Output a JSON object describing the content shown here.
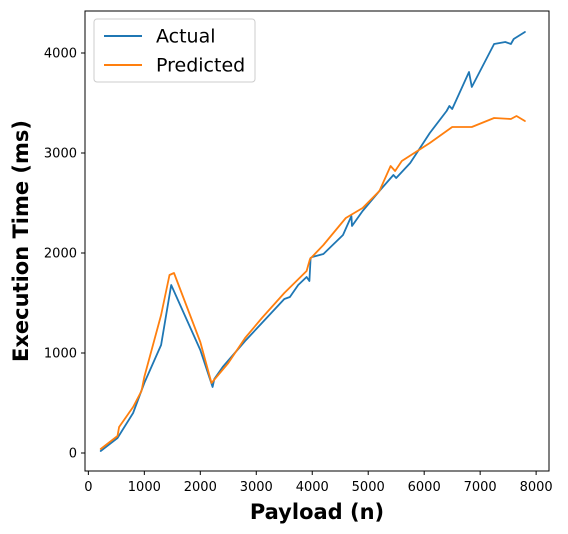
{
  "chart_data": {
    "type": "line",
    "title": "",
    "xlabel": "Payload (n)",
    "ylabel": "Execution Time (ms)",
    "xlim": [
      -60,
      8230
    ],
    "ylim": [
      -180,
      4420
    ],
    "xticks": [
      0,
      1000,
      2000,
      3000,
      4000,
      5000,
      6000,
      7000,
      8000
    ],
    "yticks": [
      0,
      1000,
      2000,
      3000,
      4000
    ],
    "grid": false,
    "legend_position": "top-left",
    "series": [
      {
        "name": "Actual",
        "color": "#1f77b4",
        "points": [
          [
            220,
            20
          ],
          [
            520,
            150
          ],
          [
            800,
            400
          ],
          [
            1000,
            700
          ],
          [
            1300,
            1080
          ],
          [
            1480,
            1680
          ],
          [
            2000,
            1030
          ],
          [
            2220,
            660
          ],
          [
            2250,
            740
          ],
          [
            2400,
            860
          ],
          [
            2800,
            1120
          ],
          [
            3100,
            1300
          ],
          [
            3500,
            1540
          ],
          [
            3600,
            1560
          ],
          [
            3750,
            1680
          ],
          [
            3900,
            1760
          ],
          [
            3950,
            1720
          ],
          [
            3970,
            1950
          ],
          [
            4000,
            1960
          ],
          [
            4200,
            1990
          ],
          [
            4550,
            2180
          ],
          [
            4700,
            2370
          ],
          [
            4710,
            2270
          ],
          [
            4900,
            2420
          ],
          [
            5200,
            2620
          ],
          [
            5450,
            2780
          ],
          [
            5500,
            2750
          ],
          [
            5750,
            2900
          ],
          [
            6100,
            3200
          ],
          [
            6400,
            3420
          ],
          [
            6450,
            3470
          ],
          [
            6500,
            3440
          ],
          [
            6800,
            3810
          ],
          [
            6850,
            3660
          ],
          [
            7250,
            4090
          ],
          [
            7450,
            4110
          ],
          [
            7550,
            4090
          ],
          [
            7600,
            4140
          ],
          [
            7800,
            4210
          ]
        ]
      },
      {
        "name": "Predicted",
        "color": "#ff7f0e",
        "points": [
          [
            220,
            40
          ],
          [
            520,
            170
          ],
          [
            550,
            260
          ],
          [
            800,
            460
          ],
          [
            950,
            620
          ],
          [
            1000,
            760
          ],
          [
            1300,
            1380
          ],
          [
            1450,
            1780
          ],
          [
            1530,
            1800
          ],
          [
            2000,
            1110
          ],
          [
            2200,
            700
          ],
          [
            2500,
            900
          ],
          [
            2800,
            1150
          ],
          [
            3100,
            1350
          ],
          [
            3500,
            1600
          ],
          [
            3900,
            1820
          ],
          [
            3960,
            1940
          ],
          [
            4200,
            2080
          ],
          [
            4600,
            2350
          ],
          [
            4900,
            2450
          ],
          [
            5200,
            2620
          ],
          [
            5400,
            2870
          ],
          [
            5480,
            2820
          ],
          [
            5600,
            2920
          ],
          [
            6100,
            3100
          ],
          [
            6500,
            3260
          ],
          [
            6850,
            3260
          ],
          [
            7250,
            3350
          ],
          [
            7550,
            3340
          ],
          [
            7650,
            3370
          ],
          [
            7800,
            3320
          ]
        ]
      }
    ]
  }
}
